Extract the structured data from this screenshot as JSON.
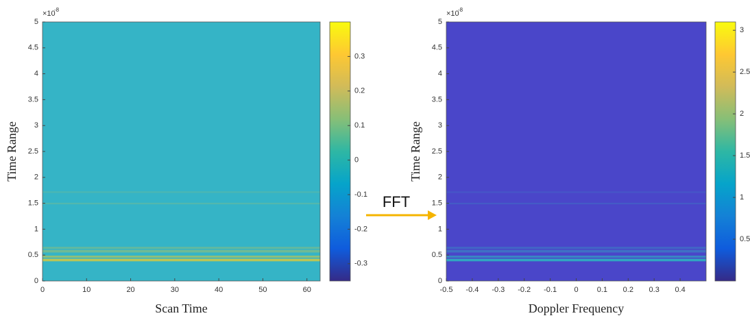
{
  "chart_data": [
    {
      "type": "heatmap",
      "x_label": "Scan Time",
      "y_label": "Time Range",
      "y_multiplier": "×10",
      "y_multiplier_exponent": "-8",
      "xlim": [
        0,
        63
      ],
      "xticks": [
        0,
        10,
        20,
        30,
        40,
        50,
        60
      ],
      "ylim": [
        0,
        5
      ],
      "yticks": [
        0,
        0.5,
        1,
        1.5,
        2,
        2.5,
        3,
        3.5,
        4,
        4.5,
        5
      ],
      "field_color": "#35b4c6",
      "band_color": "#c8c64a",
      "colormap": [
        "#352a87",
        "#0f5cdd",
        "#1481d6",
        "#06a4ca",
        "#2eb7a4",
        "#87bf77",
        "#d1bb59",
        "#fec832",
        "#f9fb0e"
      ],
      "colorbar_lim": [
        -0.35,
        0.4
      ],
      "colorbar_ticks": [
        -0.3,
        -0.2,
        -0.1,
        0,
        0.1,
        0.2,
        0.3
      ]
    },
    {
      "type": "heatmap",
      "x_label": "Doppler Frequency",
      "y_label": "Time Range",
      "y_multiplier": "×10",
      "y_multiplier_exponent": "-8",
      "xlim": [
        -0.5,
        0.5
      ],
      "xticks": [
        -0.5,
        -0.4,
        -0.3,
        -0.2,
        -0.1,
        0,
        0.1,
        0.2,
        0.3,
        0.4
      ],
      "ylim": [
        0,
        5
      ],
      "yticks": [
        0,
        0.5,
        1,
        1.5,
        2,
        2.5,
        3,
        3.5,
        4,
        4.5,
        5
      ],
      "field_color": "#4a46c9",
      "band_color": "#2fb0c0",
      "colormap": [
        "#352a87",
        "#0f5cdd",
        "#1481d6",
        "#06a4ca",
        "#2eb7a4",
        "#87bf77",
        "#d1bb59",
        "#fec832",
        "#f9fb0e"
      ],
      "colorbar_lim": [
        0,
        3.1
      ],
      "colorbar_ticks": [
        0.5,
        1,
        1.5,
        2,
        2.5,
        3
      ]
    }
  ],
  "annotation": {
    "text": "FFT",
    "color": "#f5b400"
  }
}
